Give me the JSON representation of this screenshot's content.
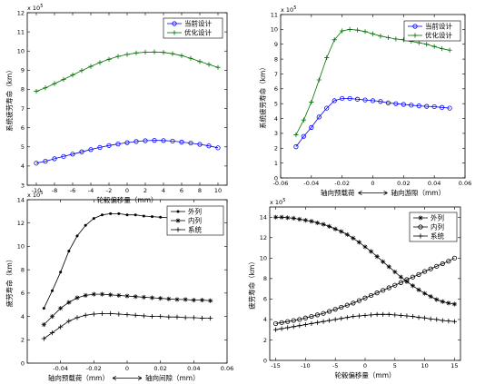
{
  "chart_data": [
    {
      "type": "line",
      "exponent": "x 10",
      "exponent_power": "5",
      "ylabel": "系统疲劳寿命（km）",
      "xlabel": "轮毂偏移量（mm）",
      "xlim": [
        -11,
        11
      ],
      "ylim": [
        3,
        12
      ],
      "xticks": [
        "-10",
        "-8",
        "-6",
        "-4",
        "-2",
        "0",
        "2",
        "4",
        "6",
        "8",
        "10"
      ],
      "xtick_values": [
        -10,
        -8,
        -6,
        -4,
        -2,
        0,
        2,
        4,
        6,
        8,
        10
      ],
      "yticks": [
        "3",
        "4",
        "5",
        "6",
        "7",
        "8",
        "9",
        "10",
        "11",
        "12"
      ],
      "ytick_values": [
        3,
        4,
        5,
        6,
        7,
        8,
        9,
        10,
        11,
        12
      ],
      "legend_position": "top-right",
      "series": [
        {
          "name": "当前设计",
          "marker": "circle",
          "color": "#0000ff",
          "x": [
            -10,
            -9,
            -8,
            -7,
            -6,
            -5,
            -4,
            -3,
            -2,
            -1,
            0,
            1,
            2,
            3,
            4,
            5,
            6,
            7,
            8,
            9,
            10
          ],
          "y": [
            4.15,
            4.25,
            4.38,
            4.5,
            4.62,
            4.74,
            4.86,
            4.97,
            5.07,
            5.15,
            5.22,
            5.28,
            5.32,
            5.34,
            5.33,
            5.3,
            5.25,
            5.2,
            5.13,
            5.05,
            4.95
          ]
        },
        {
          "name": "优化设计",
          "marker": "plus",
          "color": "#007000",
          "x": [
            -10,
            -9,
            -8,
            -7,
            -6,
            -5,
            -4,
            -3,
            -2,
            -1,
            0,
            1,
            2,
            3,
            4,
            5,
            6,
            7,
            8,
            9,
            10
          ],
          "y": [
            7.9,
            8.08,
            8.3,
            8.52,
            8.75,
            8.98,
            9.2,
            9.4,
            9.57,
            9.72,
            9.82,
            9.9,
            9.94,
            9.95,
            9.93,
            9.86,
            9.76,
            9.62,
            9.45,
            9.3,
            9.15
          ]
        }
      ]
    },
    {
      "type": "line",
      "exponent": "x 10",
      "exponent_power": "5",
      "ylabel": "系统疲劳寿命（km）",
      "xlabel_left": "轴向预载荷",
      "xlabel_right": "轴向游隙（mm）",
      "xlim": [
        -0.06,
        0.06
      ],
      "ylim": [
        0,
        11
      ],
      "xticks": [
        "-0.06",
        "-0.04",
        "-0.02",
        "0",
        "0.02",
        "0.04",
        "0.06"
      ],
      "xtick_values": [
        -0.06,
        -0.04,
        -0.02,
        0,
        0.02,
        0.04,
        0.06
      ],
      "yticks": [
        "0",
        "1",
        "2",
        "3",
        "4",
        "5",
        "6",
        "7",
        "8",
        "9",
        "10",
        "11"
      ],
      "ytick_values": [
        0,
        1,
        2,
        3,
        4,
        5,
        6,
        7,
        8,
        9,
        10,
        11
      ],
      "legend_position": "top-right",
      "series": [
        {
          "name": "当前设计",
          "marker": "circle",
          "color": "#0000ff",
          "x": [
            -0.05,
            -0.045,
            -0.04,
            -0.035,
            -0.03,
            -0.025,
            -0.02,
            -0.015,
            -0.01,
            -0.005,
            0,
            0.005,
            0.01,
            0.015,
            0.02,
            0.025,
            0.03,
            0.035,
            0.04,
            0.045,
            0.05
          ],
          "y": [
            2.1,
            2.8,
            3.4,
            4.1,
            4.7,
            5.2,
            5.35,
            5.35,
            5.3,
            5.25,
            5.2,
            5.15,
            5.05,
            5.0,
            4.95,
            4.9,
            4.85,
            4.82,
            4.8,
            4.75,
            4.7
          ]
        },
        {
          "name": "优化设计",
          "marker": "plus",
          "color": "#007000",
          "x": [
            -0.05,
            -0.045,
            -0.04,
            -0.035,
            -0.03,
            -0.025,
            -0.02,
            -0.015,
            -0.01,
            -0.005,
            0,
            0.005,
            0.01,
            0.015,
            0.02,
            0.025,
            0.03,
            0.035,
            0.04,
            0.045,
            0.05
          ],
          "y": [
            2.9,
            3.9,
            5.1,
            6.6,
            8.1,
            9.3,
            9.9,
            10.0,
            9.95,
            9.85,
            9.7,
            9.55,
            9.45,
            9.35,
            9.3,
            9.2,
            9.1,
            9.0,
            8.85,
            8.7,
            8.6
          ]
        }
      ]
    },
    {
      "type": "line",
      "exponent": "x 10",
      "exponent_power": "5",
      "ylabel": "疲劳寿命（km）",
      "xlabel_left": "轴向预载荷（mm）",
      "xlabel_right": "轴向间隙（mm）",
      "xlim": [
        -0.06,
        0.06
      ],
      "ylim": [
        0,
        14
      ],
      "xticks": [
        "-0.04",
        "-0.02",
        "0",
        "0.02",
        "0.04",
        "0.06"
      ],
      "xtick_values": [
        -0.04,
        -0.02,
        0,
        0.02,
        0.04,
        0.06
      ],
      "yticks": [
        "0",
        "2",
        "4",
        "6",
        "8",
        "10",
        "12",
        "14"
      ],
      "ytick_values": [
        0,
        2,
        4,
        6,
        8,
        10,
        12,
        14
      ],
      "legend_position": "top-right",
      "series": [
        {
          "name": "外列",
          "marker": "dot",
          "color": "#000000",
          "x": [
            -0.05,
            -0.045,
            -0.04,
            -0.035,
            -0.03,
            -0.025,
            -0.02,
            -0.015,
            -0.01,
            -0.005,
            0,
            0.005,
            0.01,
            0.015,
            0.02,
            0.025,
            0.03,
            0.035,
            0.04,
            0.045,
            0.05
          ],
          "y": [
            4.7,
            6.2,
            7.8,
            9.6,
            10.9,
            11.8,
            12.4,
            12.7,
            12.8,
            12.8,
            12.7,
            12.7,
            12.6,
            12.55,
            12.5,
            12.45,
            12.35,
            12.25,
            12.1,
            11.95,
            11.8
          ]
        },
        {
          "name": "内列",
          "marker": "star",
          "color": "#000000",
          "x": [
            -0.05,
            -0.045,
            -0.04,
            -0.035,
            -0.03,
            -0.025,
            -0.02,
            -0.015,
            -0.01,
            -0.005,
            0,
            0.005,
            0.01,
            0.015,
            0.02,
            0.025,
            0.03,
            0.035,
            0.04,
            0.045,
            0.05
          ],
          "y": [
            3.3,
            4.0,
            4.7,
            5.2,
            5.6,
            5.8,
            5.9,
            5.9,
            5.85,
            5.8,
            5.75,
            5.7,
            5.65,
            5.6,
            5.55,
            5.5,
            5.45,
            5.45,
            5.4,
            5.4,
            5.35
          ]
        },
        {
          "name": "系统",
          "marker": "plus",
          "color": "#000000",
          "x": [
            -0.05,
            -0.045,
            -0.04,
            -0.035,
            -0.03,
            -0.025,
            -0.02,
            -0.015,
            -0.01,
            -0.005,
            0,
            0.005,
            0.01,
            0.015,
            0.02,
            0.025,
            0.03,
            0.035,
            0.04,
            0.045,
            0.05
          ],
          "y": [
            2.1,
            2.6,
            3.1,
            3.6,
            3.9,
            4.1,
            4.2,
            4.25,
            4.25,
            4.2,
            4.15,
            4.1,
            4.05,
            4.0,
            4.0,
            3.95,
            3.95,
            3.9,
            3.9,
            3.85,
            3.85
          ]
        }
      ]
    },
    {
      "type": "line",
      "exponent": "x 10",
      "exponent_power": "5",
      "ylabel": "疲劳寿命（km）",
      "xlabel": "轮毂偏移量（mm）",
      "xlim": [
        -16,
        16
      ],
      "ylim": [
        0,
        15
      ],
      "xticks": [
        "-15",
        "-10",
        "-5",
        "0",
        "5",
        "10",
        "15"
      ],
      "xtick_values": [
        -15,
        -10,
        -5,
        0,
        5,
        10,
        15
      ],
      "yticks": [
        "0",
        "2",
        "4",
        "6",
        "8",
        "10",
        "12",
        "14"
      ],
      "ytick_values": [
        0,
        2,
        4,
        6,
        8,
        10,
        12,
        14
      ],
      "legend_position": "top-right",
      "series": [
        {
          "name": "外列",
          "marker": "star",
          "color": "#000000",
          "x": [
            -15,
            -14,
            -13,
            -12,
            -11,
            -10,
            -9,
            -8,
            -7,
            -6,
            -5,
            -4,
            -3,
            -2,
            -1,
            0,
            1,
            2,
            3,
            4,
            5,
            6,
            7,
            8,
            9,
            10,
            11,
            12,
            13,
            14,
            15
          ],
          "y": [
            14.0,
            14.0,
            13.95,
            13.9,
            13.8,
            13.7,
            13.6,
            13.45,
            13.3,
            13.1,
            12.85,
            12.6,
            12.3,
            11.95,
            11.55,
            11.1,
            10.65,
            10.15,
            9.65,
            9.15,
            8.65,
            8.15,
            7.7,
            7.3,
            6.9,
            6.55,
            6.25,
            5.95,
            5.75,
            5.6,
            5.5
          ]
        },
        {
          "name": "内列",
          "marker": "circle",
          "color": "#000000",
          "x": [
            -15,
            -14,
            -13,
            -12,
            -11,
            -10,
            -9,
            -8,
            -7,
            -6,
            -5,
            -4,
            -3,
            -2,
            -1,
            0,
            1,
            2,
            3,
            4,
            5,
            6,
            7,
            8,
            9,
            10,
            11,
            12,
            13,
            14,
            15
          ],
          "y": [
            3.6,
            3.7,
            3.8,
            3.9,
            4.0,
            4.15,
            4.3,
            4.45,
            4.6,
            4.8,
            5.0,
            5.2,
            5.4,
            5.6,
            5.85,
            6.1,
            6.35,
            6.6,
            6.85,
            7.1,
            7.35,
            7.6,
            7.9,
            8.15,
            8.4,
            8.7,
            8.95,
            9.2,
            9.45,
            9.7,
            10.0
          ]
        },
        {
          "name": "系统",
          "marker": "plus",
          "color": "#000000",
          "x": [
            -15,
            -14,
            -13,
            -12,
            -11,
            -10,
            -9,
            -8,
            -7,
            -6,
            -5,
            -4,
            -3,
            -2,
            -1,
            0,
            1,
            2,
            3,
            4,
            5,
            6,
            7,
            8,
            9,
            10,
            11,
            12,
            13,
            14,
            15
          ],
          "y": [
            3.0,
            3.1,
            3.2,
            3.3,
            3.4,
            3.5,
            3.6,
            3.7,
            3.8,
            3.9,
            4.0,
            4.1,
            4.2,
            4.3,
            4.35,
            4.4,
            4.45,
            4.5,
            4.5,
            4.5,
            4.45,
            4.4,
            4.35,
            4.3,
            4.2,
            4.15,
            4.05,
            4.0,
            3.9,
            3.85,
            3.8
          ]
        }
      ]
    }
  ]
}
